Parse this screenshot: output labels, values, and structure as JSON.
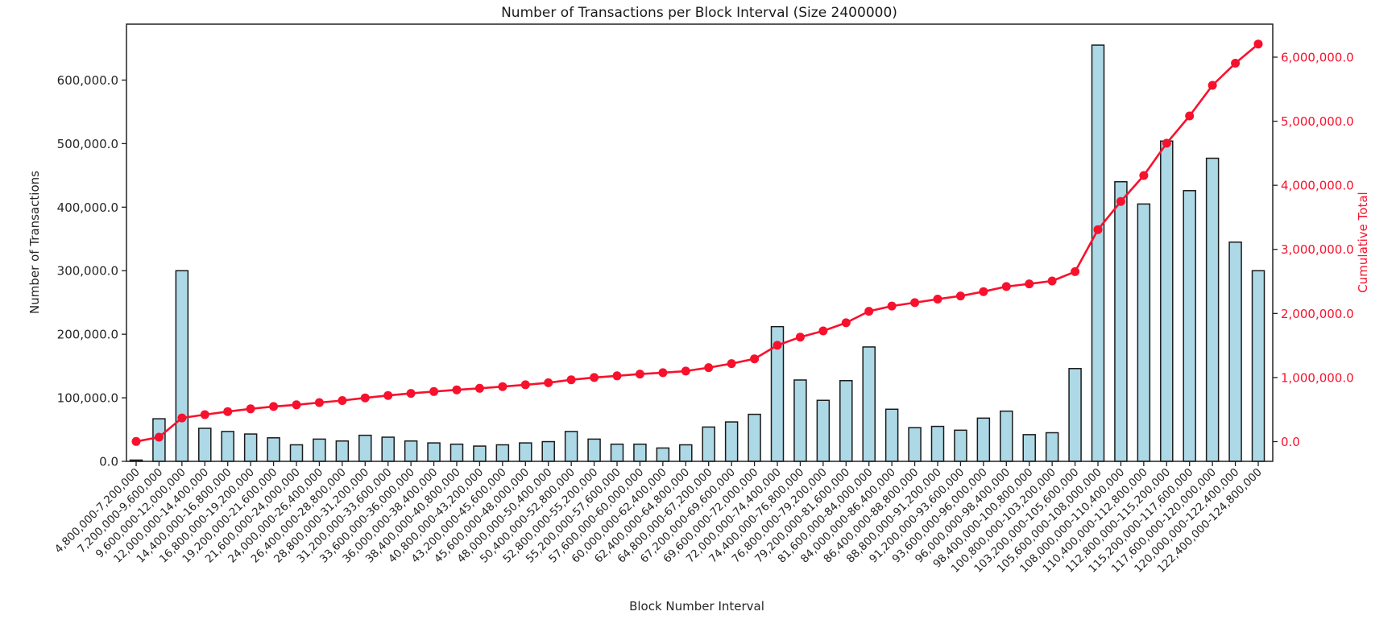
{
  "chart_data": {
    "type": "bar+line",
    "title": "Number of Transactions per Block Interval (Size 2400000)",
    "xlabel": "Block Number Interval",
    "ylabel_left": "Number of Transactions",
    "ylabel_right": "Cumulative Total",
    "grid": false,
    "legend": false,
    "categories": [
      "4,800,000-7,200,000",
      "7,200,000-9,600,000",
      "9,600,000-12,000,000",
      "12,000,000-14,400,000",
      "14,400,000-16,800,000",
      "16,800,000-19,200,000",
      "19,200,000-21,600,000",
      "21,600,000-24,000,000",
      "24,000,000-26,400,000",
      "26,400,000-28,800,000",
      "28,800,000-31,200,000",
      "31,200,000-33,600,000",
      "33,600,000-36,000,000",
      "36,000,000-38,400,000",
      "38,400,000-40,800,000",
      "40,800,000-43,200,000",
      "43,200,000-45,600,000",
      "45,600,000-48,000,000",
      "48,000,000-50,400,000",
      "50,400,000-52,800,000",
      "52,800,000-55,200,000",
      "55,200,000-57,600,000",
      "57,600,000-60,000,000",
      "60,000,000-62,400,000",
      "62,400,000-64,800,000",
      "64,800,000-67,200,000",
      "67,200,000-69,600,000",
      "69,600,000-72,000,000",
      "72,000,000-74,400,000",
      "74,400,000-76,800,000",
      "76,800,000-79,200,000",
      "79,200,000-81,600,000",
      "81,600,000-84,000,000",
      "84,000,000-86,400,000",
      "86,400,000-88,800,000",
      "88,800,000-91,200,000",
      "91,200,000-93,600,000",
      "93,600,000-96,000,000",
      "96,000,000-98,400,000",
      "98,400,000-100,800,000",
      "100,800,000-103,200,000",
      "103,200,000-105,600,000",
      "105,600,000-108,000,000",
      "108,000,000-110,400,000",
      "110,400,000-112,800,000",
      "112,800,000-115,200,000",
      "115,200,000-117,600,000",
      "117,600,000-120,000,000",
      "120,000,000-122,400,000",
      "122,400,000-124,800,000"
    ],
    "series": [
      {
        "name": "Number of Transactions",
        "type": "bar",
        "axis": "left",
        "fill_color": "#add8e6",
        "edge_color": "#1a1a1a",
        "values": [
          2000,
          67000,
          300000,
          52000,
          47000,
          43000,
          37000,
          26000,
          35000,
          32000,
          41000,
          38000,
          32000,
          29000,
          27000,
          24000,
          26000,
          29000,
          31000,
          47000,
          35000,
          27000,
          27000,
          21000,
          26000,
          54000,
          62000,
          74000,
          212000,
          128000,
          96000,
          127000,
          180000,
          82000,
          53000,
          55000,
          49000,
          68000,
          79000,
          42000,
          45000,
          146000,
          655000,
          440000,
          405000,
          504000,
          426000,
          477000,
          345000,
          300000
        ]
      },
      {
        "name": "Cumulative Total",
        "type": "line",
        "axis": "right",
        "color": "#f8112d",
        "marker": "circle",
        "values": [
          2000,
          69000,
          369000,
          421000,
          468000,
          511000,
          548000,
          574000,
          609000,
          641000,
          682000,
          720000,
          752000,
          781000,
          808000,
          832000,
          858000,
          887000,
          918000,
          965000,
          1000000,
          1027000,
          1054000,
          1075000,
          1101000,
          1155000,
          1217000,
          1291000,
          1503000,
          1631000,
          1727000,
          1854000,
          2034000,
          2116000,
          2169000,
          2224000,
          2273000,
          2341000,
          2420000,
          2462000,
          2507000,
          2653000,
          3308000,
          3748000,
          4153000,
          4657000,
          5083000,
          5560000,
          5905000,
          6205000
        ]
      }
    ],
    "axes": {
      "left": {
        "tick_labels": [
          "0.0",
          "100,000.0",
          "200,000.0",
          "300,000.0",
          "400,000.0",
          "500,000.0",
          "600,000.0"
        ],
        "tick_values": [
          0,
          100000,
          200000,
          300000,
          400000,
          500000,
          600000
        ],
        "lim": [
          0,
          688000
        ],
        "color": "#262626"
      },
      "right": {
        "tick_labels": [
          "0.0",
          "1,000,000.0",
          "2,000,000.0",
          "3,000,000.0",
          "4,000,000.0",
          "5,000,000.0",
          "6,000,000.0"
        ],
        "tick_values": [
          0,
          1000000,
          2000000,
          3000000,
          4000000,
          5000000,
          6000000
        ],
        "lim": [
          -308000,
          6515000
        ],
        "color": "#f8112d"
      },
      "x": {
        "tick_rotation_deg": 45,
        "color": "#262626"
      }
    },
    "colors": {
      "background": "#ffffff",
      "spine": "#222222",
      "bar_fill": "#add8e6",
      "bar_edge": "#1a1a1a",
      "line_red": "#f8112d"
    }
  }
}
